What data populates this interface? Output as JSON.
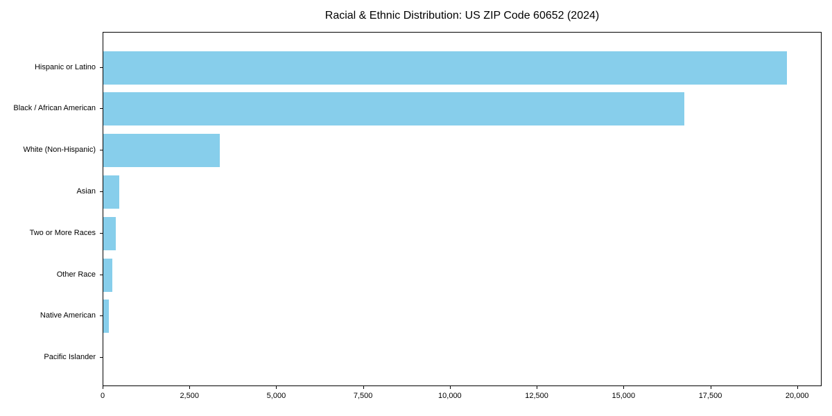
{
  "chart_data": {
    "type": "bar",
    "orientation": "horizontal",
    "title": "Racial & Ethnic Distribution: US ZIP Code 60652 (2024)",
    "categories": [
      "Hispanic or Latino",
      "Black / African American",
      "White (Non-Hispanic)",
      "Asian",
      "Two or More Races",
      "Other Race",
      "Native American",
      "Pacific Islander"
    ],
    "values": [
      19680,
      16740,
      3360,
      465,
      350,
      250,
      165,
      0
    ],
    "xlabel": "",
    "ylabel": "",
    "xlim": [
      0,
      20664
    ],
    "x_ticks": [
      0,
      2500,
      5000,
      7500,
      10000,
      12500,
      15000,
      17500,
      20000
    ],
    "x_tick_labels": [
      "0",
      "2,500",
      "5,000",
      "7,500",
      "10,000",
      "12,500",
      "15,000",
      "17,500",
      "20,000"
    ],
    "bar_color": "#87CEEB",
    "axis_color": "#000000",
    "text_color": "#000000",
    "background_color": "#ffffff",
    "grid": false,
    "legend": null
  }
}
